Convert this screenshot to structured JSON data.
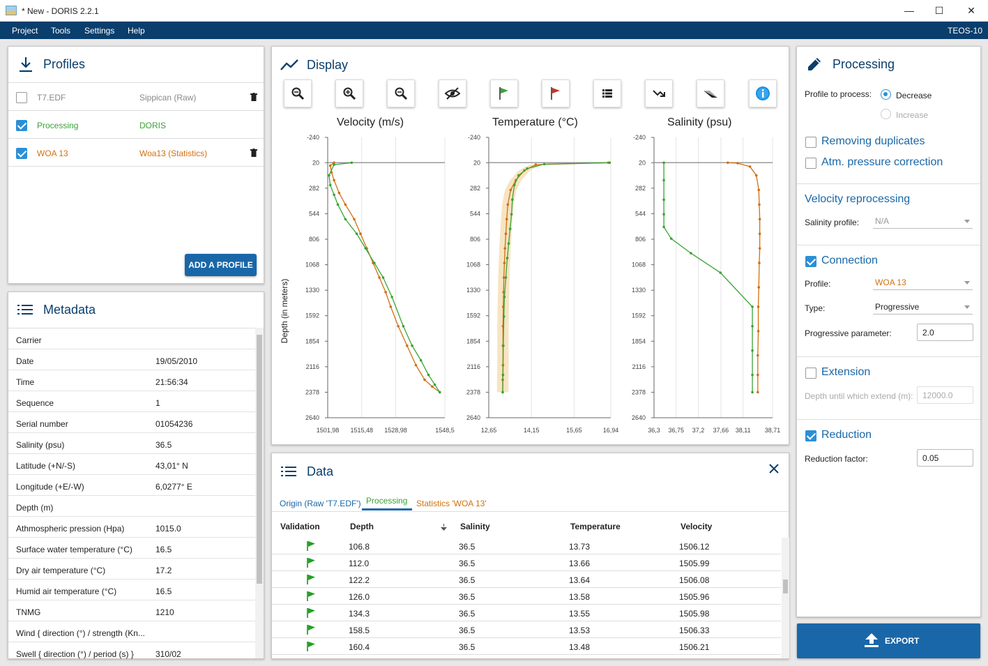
{
  "window": {
    "title": "* New - DORIS 2.2.1",
    "min": "—",
    "max": "☐",
    "close": "✕"
  },
  "menu": {
    "items": [
      "Project",
      "Tools",
      "Settings",
      "Help"
    ],
    "right_label": "TEOS-10"
  },
  "profiles": {
    "title": "Profiles",
    "rows": [
      {
        "name": "T7.EDF",
        "source": "Sippican (Raw)",
        "checked": false,
        "color": "#888888",
        "deletable": true
      },
      {
        "name": "Processing",
        "source": "DORIS",
        "checked": true,
        "color": "#3aa335",
        "deletable": false
      },
      {
        "name": "WOA 13",
        "source": "Woa13 (Statistics)",
        "checked": true,
        "color": "#d07010",
        "deletable": true
      }
    ],
    "add_button": "ADD A PROFILE"
  },
  "metadata": {
    "title": "Metadata",
    "rows": [
      {
        "key": "Carrier",
        "value": ""
      },
      {
        "key": "Date",
        "value": "19/05/2010"
      },
      {
        "key": "Time",
        "value": "21:56:34"
      },
      {
        "key": "Sequence",
        "value": "1"
      },
      {
        "key": "Serial number",
        "value": "01054236"
      },
      {
        "key": "Salinity (psu)",
        "value": "36.5"
      },
      {
        "key": "Latitude (+N/-S)",
        "value": "43,01° N"
      },
      {
        "key": "Longitude (+E/-W)",
        "value": "6,0277° E"
      },
      {
        "key": "Depth (m)",
        "value": ""
      },
      {
        "key": "Athmospheric pression (Hpa)",
        "value": "1015.0"
      },
      {
        "key": "Surface water temperature (°C)",
        "value": "16.5"
      },
      {
        "key": "Dry air temperature (°C)",
        "value": "17.2"
      },
      {
        "key": "Humid air temperature (°C)",
        "value": "16.5"
      },
      {
        "key": "TNMG",
        "value": "1210"
      },
      {
        "key": "Wind { direction (°) / strength (Kn...",
        "value": ""
      },
      {
        "key": "Swell { direction (°) / period (s) }",
        "value": "310/02"
      }
    ]
  },
  "display": {
    "title": "Display",
    "toolbar": [
      "zoom-fit",
      "zoom-in",
      "zoom-out",
      "hide",
      "flag-green",
      "flag-red",
      "list",
      "trend",
      "gradient",
      "info"
    ]
  },
  "chart_data": [
    {
      "type": "line",
      "title": "Velocity (m/s)",
      "ylabel": "Depth (in meters)",
      "ylim": [
        2640,
        -240
      ],
      "yticks": [
        "-240",
        "20",
        "282",
        "544",
        "806",
        "1068",
        "1330",
        "1592",
        "1854",
        "2116",
        "2378",
        "2640"
      ],
      "xlim": [
        1501.98,
        1548.5
      ],
      "xticks": [
        "1501,98",
        "1515,48",
        "1528,98",
        "1548,5"
      ],
      "series": [
        {
          "color": "#d07010",
          "x": [
            1504.5,
            1503.0,
            1503.5,
            1504.5,
            1506.5,
            1509.0,
            1512.5,
            1515.0,
            1517.5,
            1520.0,
            1522.5,
            1525.0,
            1527.0,
            1530.0,
            1533.5,
            1537.0,
            1540.5,
            1543.5,
            1546.5
          ],
          "y": [
            20,
            50,
            120,
            200,
            330,
            450,
            600,
            750,
            900,
            1050,
            1200,
            1350,
            1500,
            1700,
            1900,
            2100,
            2250,
            2320,
            2378
          ]
        },
        {
          "color": "#3aa335",
          "x": [
            1511.5,
            1504.5,
            1502.5,
            1503.0,
            1504.5,
            1506.0,
            1509.0,
            1513.5,
            1517.0,
            1520.5,
            1524.0,
            1527.5,
            1532.0,
            1535.5,
            1539.0,
            1542.0,
            1544.5,
            1546.5
          ],
          "y": [
            20,
            40,
            150,
            250,
            350,
            450,
            600,
            750,
            900,
            1050,
            1200,
            1400,
            1700,
            1900,
            2050,
            2200,
            2300,
            2378
          ]
        }
      ]
    },
    {
      "type": "line",
      "title": "Temperature (°C)",
      "ylim": [
        2640,
        -240
      ],
      "yticks": [
        "-240",
        "20",
        "282",
        "544",
        "806",
        "1068",
        "1330",
        "1592",
        "1854",
        "2116",
        "2378",
        "2640"
      ],
      "xlim": [
        12.65,
        16.94
      ],
      "xticks": [
        "12,65",
        "14,15",
        "15,65",
        "16,94"
      ],
      "series": [
        {
          "color": "#d07010",
          "x": [
            16.85,
            14.3,
            13.9,
            13.6,
            13.42,
            13.32,
            13.28,
            13.25,
            13.22,
            13.2,
            13.18,
            13.17,
            13.16,
            13.15,
            13.15,
            13.15,
            13.14,
            13.14
          ],
          "y": [
            20,
            40,
            100,
            200,
            300,
            450,
            600,
            750,
            900,
            1050,
            1200,
            1350,
            1500,
            1700,
            1900,
            2100,
            2250,
            2378
          ]
        },
        {
          "color": "#3aa335",
          "x": [
            16.9,
            14.6,
            14.0,
            13.7,
            13.55,
            13.48,
            13.45,
            13.4,
            13.35,
            13.3,
            13.25,
            13.2,
            13.18,
            13.16,
            13.15,
            13.14
          ],
          "y": [
            20,
            35,
            80,
            150,
            250,
            400,
            550,
            700,
            850,
            1000,
            1200,
            1400,
            1600,
            1900,
            2200,
            2378
          ]
        }
      ]
    },
    {
      "type": "line",
      "title": "Salinity (psu)",
      "ylim": [
        2640,
        -240
      ],
      "yticks": [
        "-240",
        "20",
        "282",
        "544",
        "806",
        "1068",
        "1330",
        "1592",
        "1854",
        "2116",
        "2378",
        "2640"
      ],
      "xlim": [
        36.3,
        38.71
      ],
      "xticks": [
        "36,3",
        "36,75",
        "37,2",
        "37,66",
        "38,11",
        "38,71"
      ],
      "series": [
        {
          "color": "#d07010",
          "x": [
            37.8,
            38.0,
            38.25,
            38.38,
            38.43,
            38.44,
            38.45,
            38.45,
            38.45,
            38.44,
            38.43,
            38.42,
            38.42,
            38.41,
            38.41,
            38.41
          ],
          "y": [
            20,
            25,
            60,
            150,
            300,
            450,
            600,
            750,
            900,
            1050,
            1300,
            1500,
            1750,
            2000,
            2200,
            2378
          ]
        },
        {
          "color": "#3aa335",
          "x": [
            36.5,
            36.5,
            36.5,
            36.5,
            36.5,
            36.65,
            37.05,
            37.65,
            38.3,
            38.3,
            38.3,
            38.3,
            38.3
          ],
          "y": [
            20,
            200,
            400,
            550,
            680,
            800,
            950,
            1150,
            1500,
            1700,
            1950,
            2200,
            2378
          ]
        }
      ]
    }
  ],
  "data_panel": {
    "title": "Data",
    "tabs": [
      {
        "label": "Origin (Raw 'T7.EDF')",
        "color": "#1967a8"
      },
      {
        "label": "Processing",
        "color": "#3aa335"
      },
      {
        "label": "Statistics 'WOA 13'",
        "color": "#d07010"
      }
    ],
    "columns": [
      "Validation",
      "Depth",
      "Salinity",
      "Temperature",
      "Velocity"
    ],
    "rows": [
      [
        "106.8",
        "36.5",
        "13.73",
        "1506.12"
      ],
      [
        "112.0",
        "36.5",
        "13.66",
        "1505.99"
      ],
      [
        "122.2",
        "36.5",
        "13.64",
        "1506.08"
      ],
      [
        "126.0",
        "36.5",
        "13.58",
        "1505.96"
      ],
      [
        "134.3",
        "36.5",
        "13.55",
        "1505.98"
      ],
      [
        "158.5",
        "36.5",
        "13.53",
        "1506.33"
      ],
      [
        "160.4",
        "36.5",
        "13.48",
        "1506.21"
      ]
    ]
  },
  "processing": {
    "title": "Processing",
    "profile_to_process_label": "Profile to process:",
    "decrease_label": "Decrease",
    "increase_label": "Increase",
    "removing_duplicates": "Removing duplicates",
    "atm_pressure": "Atm. pressure correction",
    "velocity_reprocessing": "Velocity reprocessing",
    "salinity_profile_label": "Salinity profile:",
    "salinity_profile_value": "N/A",
    "connection": "Connection",
    "profile_label": "Profile:",
    "profile_value": "WOA 13",
    "type_label": "Type:",
    "type_value": "Progressive",
    "progressive_param_label": "Progressive parameter:",
    "progressive_param_value": "2.0",
    "extension": "Extension",
    "depth_extend_label": "Depth until which extend (m):",
    "depth_extend_value": "12000.0",
    "reduction": "Reduction",
    "reduction_factor_label": "Reduction factor:",
    "reduction_factor_value": "0.05",
    "export_label": "EXPORT"
  },
  "colors": {
    "brand": "#0a3e6c",
    "accent": "#1967a8",
    "processing": "#3aa335",
    "woa": "#d07010"
  }
}
